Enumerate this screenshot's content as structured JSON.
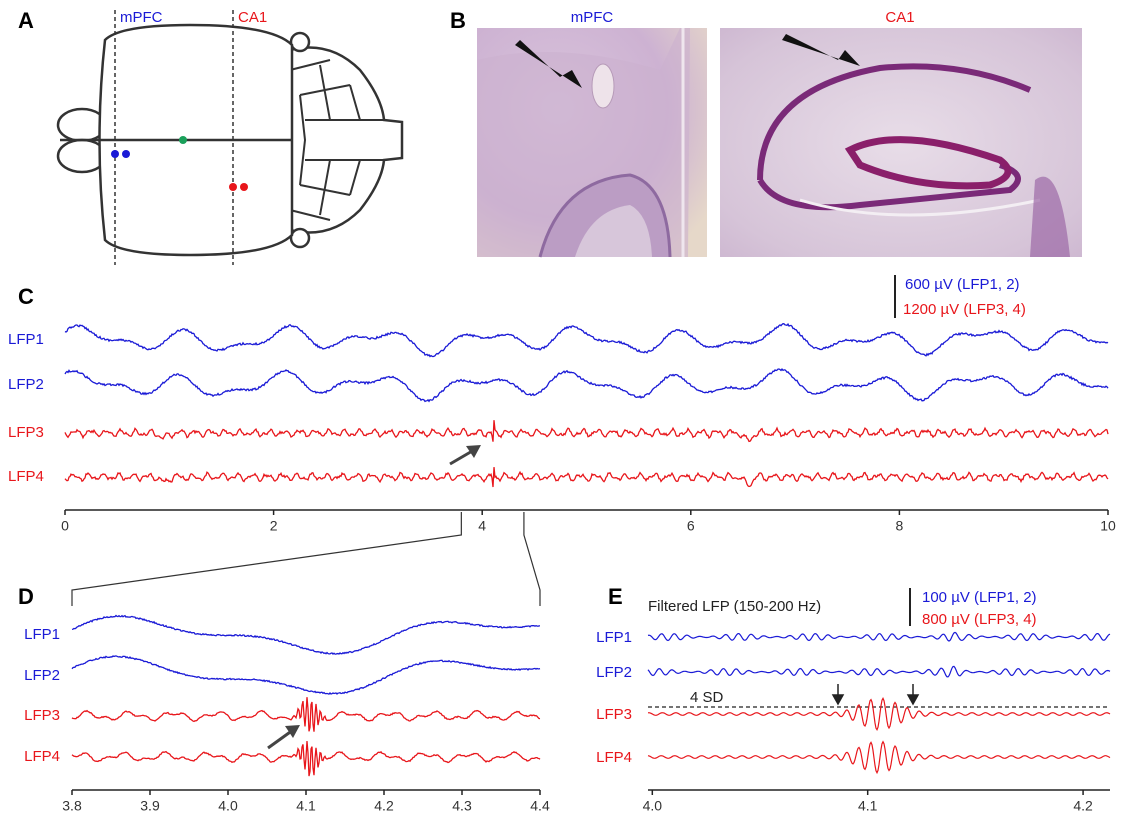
{
  "panel_labels": [
    "A",
    "B",
    "C",
    "D",
    "E"
  ],
  "panel_a": {
    "regions": [
      "mPFC",
      "CA1"
    ]
  },
  "panel_b": {
    "images": [
      "mPFC",
      "CA1"
    ]
  },
  "panel_c": {
    "traces": [
      "LFP1",
      "LFP2",
      "LFP3",
      "LFP4"
    ],
    "scale_bar": [
      "600  µV (LFP1, 2)",
      "1200 µV (LFP3, 4)"
    ],
    "xlim": [
      0,
      10
    ],
    "xticks": [
      0,
      2,
      4,
      6,
      8,
      10
    ]
  },
  "panel_d": {
    "traces": [
      "LFP1",
      "LFP2",
      "LFP3",
      "LFP4"
    ],
    "xlim": [
      3.8,
      4.4
    ],
    "xticks": [
      3.8,
      3.9,
      {
        "value": 4,
        "label": "4.0"
      },
      4.1,
      4.2,
      4.3,
      4.4
    ]
  },
  "panel_e": {
    "title": "Filtered LFP (150-200 Hz)",
    "traces": [
      "LFP1",
      "LFP2",
      "LFP3",
      "LFP4"
    ],
    "scale_bar": [
      "100 µV (LFP1, 2)",
      "800 µV (LFP3, 4)"
    ],
    "threshold": "4 SD",
    "xlim": [
      3.998,
      4.2125
    ],
    "xticks": [
      {
        "value": 4,
        "label": "4.0"
      },
      4.1,
      {
        "value": 4.2,
        "label": "4.2"
      }
    ]
  }
}
